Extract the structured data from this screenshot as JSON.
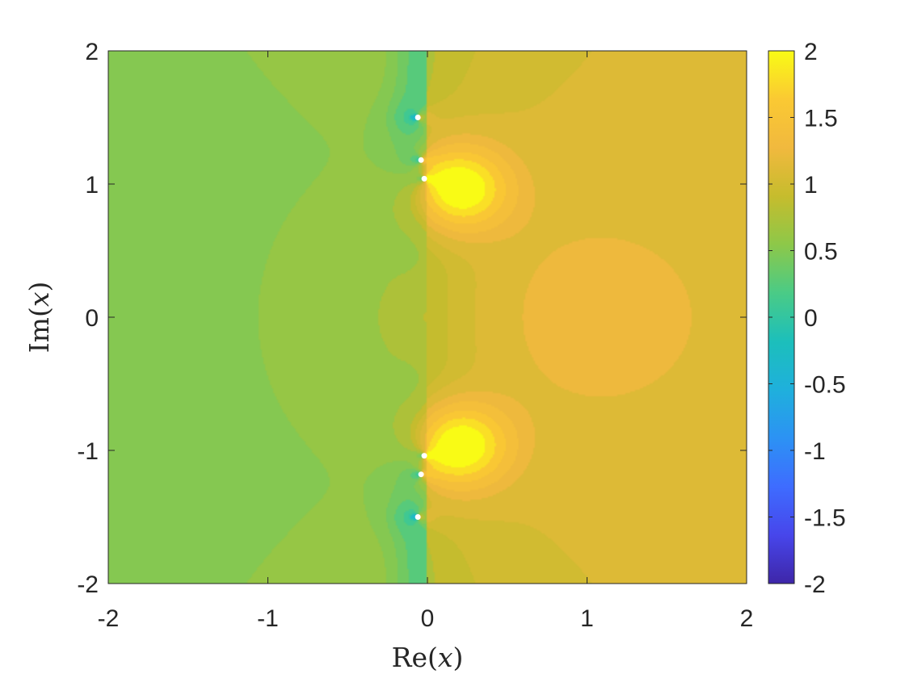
{
  "chart_data": {
    "type": "heatmap",
    "title": "",
    "xlabel": {
      "prefix": "Re(",
      "var": "x",
      "suffix": ")"
    },
    "ylabel": {
      "prefix": "Im(",
      "var": "x",
      "suffix": ")"
    },
    "xlim": [
      -2,
      2
    ],
    "ylim": [
      -2,
      2
    ],
    "xticks": [
      -2,
      -1,
      0,
      1,
      2
    ],
    "yticks": [
      -2,
      -1,
      0,
      1,
      2
    ],
    "xtick_labels": [
      "-2",
      "-1",
      "0",
      "1",
      "2"
    ],
    "ytick_labels": [
      "-2",
      "-1",
      "0",
      "1",
      "2"
    ],
    "grid": false,
    "colorbar": {
      "position": "right",
      "range": [
        -2,
        2
      ],
      "ticks": [
        -2,
        -1.5,
        -1,
        -0.5,
        0,
        0.5,
        1,
        1.5,
        2
      ],
      "tick_labels": [
        "-2",
        "-1.5",
        "-1",
        "-0.5",
        "0",
        "0.5",
        "1",
        "1.5",
        "2"
      ],
      "colormap": "parula",
      "colormap_colors": [
        "#3e26a8",
        "#4746eb",
        "#3e6cff",
        "#2c92f4",
        "#1fb0dc",
        "#1cbfbb",
        "#4acb86",
        "#8dc849",
        "#c6bc2d",
        "#f1b93e",
        "#fac933",
        "#f9fb15"
      ]
    },
    "levels": [
      -2,
      -1.5,
      -1,
      -0.75,
      -0.5,
      -0.25,
      0,
      0.1,
      0.25,
      0.4,
      0.5,
      0.6,
      0.75,
      0.9,
      1,
      1.1,
      1.25,
      1.4,
      1.6,
      1.8,
      2
    ],
    "poles": [
      {
        "x": -0.06,
        "y": 1.5
      },
      {
        "x": -0.04,
        "y": 1.18
      },
      {
        "x": -0.02,
        "y": 1.04
      },
      {
        "x": -0.02,
        "y": -1.04
      },
      {
        "x": -0.04,
        "y": -1.18
      },
      {
        "x": -0.06,
        "y": -1.5
      }
    ],
    "pole_marker_color": "#ffffff"
  }
}
